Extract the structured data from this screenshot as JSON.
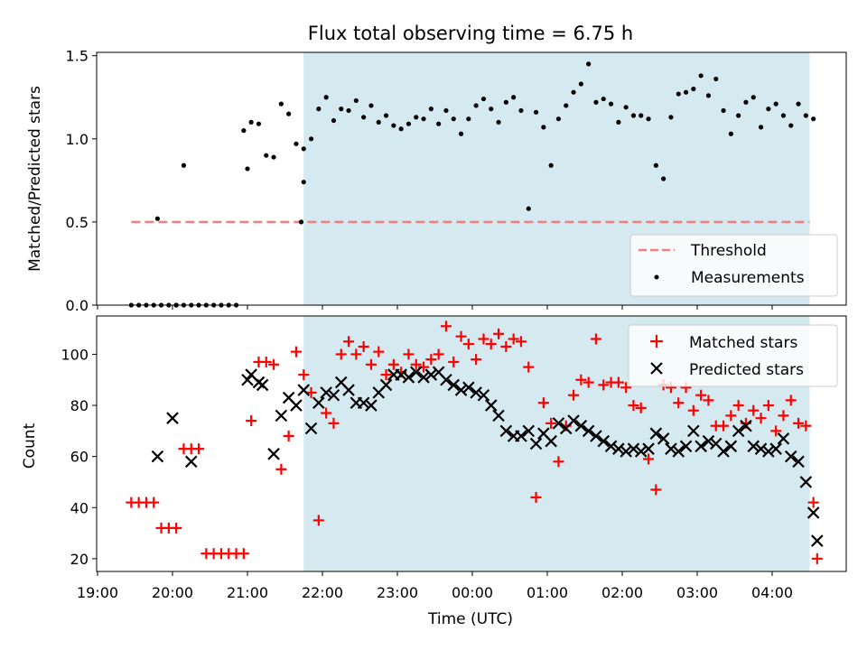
{
  "chart_data": [
    {
      "type": "scatter",
      "title": "Flux total observing time = 6.75 h",
      "ylabel": "Matched/Predicted stars",
      "xlabel": "",
      "ylim": [
        0,
        1.52
      ],
      "yticks": [
        0.0,
        0.5,
        1.0,
        1.5
      ],
      "yticklabels": [
        "0.0",
        "0.5",
        "1.0",
        "1.5"
      ],
      "shaded_region": {
        "start": "21:45",
        "end": "04:30",
        "color": "#d4eaf0"
      },
      "threshold": {
        "name": "Threshold",
        "value": 0.5,
        "start": "19:27",
        "end": "04:30",
        "color": "#f08080",
        "style": "dashed"
      },
      "series": [
        {
          "name": "Measurements",
          "marker": "dot",
          "color": "#000000",
          "x": [
            "19:27",
            "19:33",
            "19:39",
            "19:45",
            "19:51",
            "19:57",
            "20:03",
            "20:09",
            "20:15",
            "20:21",
            "20:27",
            "20:33",
            "20:39",
            "20:45",
            "20:51",
            "20:57",
            "21:03",
            "21:09",
            "21:15",
            "21:21",
            "21:27",
            "21:33",
            "21:39",
            "21:45",
            "21:51",
            "21:57",
            "22:03",
            "22:09",
            "22:15",
            "22:21",
            "22:27",
            "22:33",
            "22:39",
            "22:45",
            "22:51",
            "22:57",
            "23:03",
            "23:09",
            "23:15",
            "23:21",
            "23:27",
            "23:33",
            "23:39",
            "23:45",
            "23:51",
            "23:57",
            "00:03",
            "00:09",
            "00:15",
            "00:21",
            "00:27",
            "00:33",
            "00:39",
            "00:45",
            "00:51",
            "00:57",
            "01:03",
            "01:09",
            "01:15",
            "01:21",
            "01:27",
            "01:33",
            "01:39",
            "01:45",
            "01:51",
            "01:57",
            "02:03",
            "02:09",
            "02:15",
            "02:21",
            "02:27",
            "02:33",
            "02:39",
            "02:45",
            "02:51",
            "02:57",
            "03:03",
            "03:09",
            "03:15",
            "03:21",
            "03:27",
            "03:33",
            "03:39",
            "03:45",
            "03:51",
            "03:57",
            "04:03",
            "04:09",
            "04:15",
            "04:21",
            "04:27",
            "04:33",
            "21:43",
            "20:09",
            "21:00",
            "19:48",
            "20:03",
            "21:45"
          ],
          "y": [
            0.0,
            0.0,
            0.0,
            0.0,
            0.0,
            0.0,
            0.0,
            0.0,
            0.0,
            0.0,
            0.0,
            0.0,
            0.0,
            0.0,
            0.0,
            1.05,
            1.1,
            1.09,
            0.9,
            0.89,
            1.21,
            1.15,
            0.97,
            0.94,
            1.0,
            1.18,
            1.25,
            1.11,
            1.18,
            1.17,
            1.23,
            1.13,
            1.2,
            1.1,
            1.14,
            1.08,
            1.06,
            1.09,
            1.13,
            1.12,
            1.18,
            1.09,
            1.17,
            1.12,
            1.03,
            1.12,
            1.2,
            1.24,
            1.18,
            1.1,
            1.22,
            1.25,
            1.17,
            0.58,
            1.16,
            1.07,
            0.84,
            1.12,
            1.2,
            1.28,
            1.33,
            1.45,
            1.22,
            1.24,
            1.21,
            1.1,
            1.19,
            1.14,
            1.14,
            1.12,
            0.84,
            0.76,
            1.13,
            1.27,
            1.28,
            1.3,
            1.38,
            1.26,
            1.36,
            1.17,
            1.03,
            1.14,
            1.22,
            1.25,
            1.07,
            1.18,
            1.21,
            1.14,
            1.08,
            1.21,
            1.14,
            1.12,
            0.5,
            0.84,
            0.82,
            0.52,
            0.0,
            0.74
          ]
        }
      ]
    },
    {
      "type": "scatter",
      "title": "",
      "xlabel": "Time (UTC)",
      "ylabel": "Count",
      "ylim": [
        15,
        115
      ],
      "yticks": [
        20,
        40,
        60,
        80,
        100
      ],
      "yticklabels": [
        "20",
        "40",
        "60",
        "80",
        "100"
      ],
      "xticklabels": [
        "19:00",
        "20:00",
        "21:00",
        "22:00",
        "23:00",
        "00:00",
        "01:00",
        "02:00",
        "03:00",
        "04:00"
      ],
      "shaded_region": {
        "start": "21:45",
        "end": "04:30",
        "color": "#d4eaf0"
      },
      "series": [
        {
          "name": "Matched stars",
          "marker": "plus",
          "color": "#ff0000",
          "x": [
            "19:27",
            "19:33",
            "19:39",
            "19:45",
            "19:51",
            "19:57",
            "20:03",
            "20:09",
            "20:15",
            "20:21",
            "20:27",
            "20:33",
            "20:39",
            "20:45",
            "20:51",
            "20:57",
            "21:03",
            "21:09",
            "21:15",
            "21:21",
            "21:27",
            "21:33",
            "21:39",
            "21:45",
            "21:51",
            "21:57",
            "22:03",
            "22:09",
            "22:15",
            "22:21",
            "22:27",
            "22:33",
            "22:39",
            "22:45",
            "22:51",
            "22:57",
            "23:03",
            "23:09",
            "23:15",
            "23:21",
            "23:27",
            "23:33",
            "23:39",
            "23:45",
            "23:51",
            "23:57",
            "00:03",
            "00:09",
            "00:15",
            "00:21",
            "00:27",
            "00:33",
            "00:39",
            "00:45",
            "00:51",
            "00:57",
            "01:03",
            "01:09",
            "01:15",
            "01:21",
            "01:27",
            "01:33",
            "01:39",
            "01:45",
            "01:51",
            "01:57",
            "02:03",
            "02:09",
            "02:15",
            "02:21",
            "02:27",
            "02:33",
            "02:39",
            "02:45",
            "02:51",
            "02:57",
            "03:03",
            "03:09",
            "03:15",
            "03:21",
            "03:27",
            "03:33",
            "03:39",
            "03:45",
            "03:51",
            "03:57",
            "04:03",
            "04:09",
            "04:15",
            "04:21",
            "04:27",
            "04:33"
          ],
          "y": [
            42,
            42,
            42,
            42,
            32,
            32,
            32,
            63,
            63,
            63,
            22,
            22,
            22,
            22,
            22,
            22,
            74,
            97,
            97,
            96,
            55,
            68,
            101,
            92,
            85,
            35,
            77,
            73,
            100,
            105,
            100,
            103,
            96,
            101,
            92,
            96,
            93,
            100,
            96,
            95,
            98,
            100,
            111,
            97,
            107,
            104,
            98,
            106,
            104,
            108,
            103,
            106,
            105,
            95,
            44,
            81,
            73,
            58,
            72,
            84,
            90,
            89,
            106,
            88,
            89,
            89,
            87,
            80,
            79,
            59,
            47,
            88,
            87,
            81,
            87,
            78,
            84,
            82,
            72,
            72,
            76,
            80,
            73,
            78,
            75,
            80,
            70,
            76,
            82,
            73,
            72,
            42
          ]
        },
        {
          "name": "Predicted stars",
          "marker": "x",
          "color": "#000000",
          "x": [
            "19:48",
            "20:00",
            "20:15",
            "21:00",
            "21:03",
            "21:09",
            "21:12",
            "21:21",
            "21:27",
            "21:33",
            "21:39",
            "21:45",
            "21:51",
            "21:57",
            "22:03",
            "22:09",
            "22:15",
            "22:21",
            "22:27",
            "22:33",
            "22:39",
            "22:45",
            "22:51",
            "22:57",
            "23:03",
            "23:09",
            "23:15",
            "23:21",
            "23:27",
            "23:33",
            "23:39",
            "23:45",
            "23:51",
            "23:57",
            "00:03",
            "00:09",
            "00:15",
            "00:21",
            "00:27",
            "00:33",
            "00:39",
            "00:45",
            "00:51",
            "00:57",
            "01:03",
            "01:09",
            "01:15",
            "01:21",
            "01:27",
            "01:33",
            "01:39",
            "01:45",
            "01:51",
            "01:57",
            "02:03",
            "02:09",
            "02:15",
            "02:21",
            "02:27",
            "02:33",
            "02:39",
            "02:45",
            "02:51",
            "02:57",
            "03:03",
            "03:09",
            "03:15",
            "03:21",
            "03:27",
            "03:33",
            "03:39",
            "03:45",
            "03:51",
            "03:57",
            "04:03",
            "04:09",
            "04:15",
            "04:21",
            "04:27",
            "04:33"
          ],
          "y": [
            60,
            75,
            58,
            90,
            92,
            89,
            88,
            61,
            76,
            83,
            80,
            86,
            71,
            81,
            85,
            84,
            89,
            86,
            81,
            81,
            80,
            85,
            88,
            92,
            92,
            91,
            93,
            91,
            92,
            93,
            90,
            88,
            86,
            87,
            85,
            84,
            80,
            76,
            70,
            68,
            68,
            70,
            65,
            69,
            66,
            73,
            71,
            74,
            72,
            70,
            68,
            66,
            64,
            63,
            62,
            63,
            62,
            63,
            69,
            67,
            63,
            62,
            64,
            70,
            64,
            66,
            65,
            62,
            64,
            70,
            72,
            64,
            63,
            62,
            63,
            67,
            60,
            58,
            50,
            38
          ]
        }
      ],
      "extra_points": {
        "predicted_end": {
          "x": "04:36",
          "y": 27
        },
        "matched_end": {
          "x": "04:36",
          "y": 20
        }
      }
    }
  ],
  "legend_top": {
    "threshold_label": "Threshold",
    "measurements_label": "Measurements"
  },
  "legend_bottom": {
    "matched_label": "Matched stars",
    "predicted_label": "Predicted stars"
  }
}
